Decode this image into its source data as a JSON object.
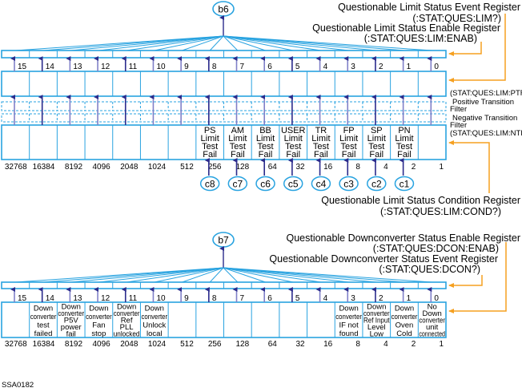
{
  "colors": {
    "register_line": "#29a3e0",
    "arrow_dark": "#2b2b8c",
    "arrow_light": "#8080c8",
    "pointer_orange": "#f5a020"
  },
  "top": {
    "summary_bit": "b6",
    "event_register": "Questionable Limit Status Event Register",
    "event_register_cmd": "(:STAT:QUES:LIM?)",
    "enable_register": "Questionable Limit Status Enable Register",
    "enable_register_cmd": "(:STAT:QUES:LIM:ENAB)",
    "ptr_cmd": "(STAT:QUES:LIM:PTR)",
    "ptr_label": [
      "Positive Transition",
      "Filter"
    ],
    "ntr_label": [
      "Negative Transition",
      "Filter"
    ],
    "ntr_cmd": "(STAT:QUES:LIM:NTR)",
    "condition_register": "Questionable Limit Status Condition Register",
    "condition_register_cmd": "(:STAT:QUES:LIM:COND?)",
    "bits": [
      "15",
      "14",
      "13",
      "12",
      "11",
      "10",
      "9",
      "8",
      "7",
      "6",
      "5",
      "4",
      "3",
      "2",
      "1",
      "0"
    ],
    "weights": [
      "32768",
      "16384",
      "8192",
      "4096",
      "2048",
      "1024",
      "512",
      "256",
      "128",
      "64",
      "32",
      "16",
      "8",
      "4",
      "2",
      "1"
    ],
    "conditions": [
      [],
      [],
      [],
      [],
      [],
      [],
      [],
      [
        "PS",
        "Limit",
        "Test",
        "Fail"
      ],
      [
        "AM",
        "Limit",
        "Test",
        "Fail"
      ],
      [
        "BB",
        "Limit",
        "Test",
        "Fail"
      ],
      [
        "USER",
        "Limit",
        "Test",
        "Fail"
      ],
      [
        "TR",
        "Limit",
        "Test",
        "Fail"
      ],
      [
        "FP",
        "Limit",
        "Test",
        "Fail"
      ],
      [
        "SP",
        "Limit",
        "Test",
        "Fail"
      ],
      [
        "PN",
        "Limit",
        "Test",
        "Fail"
      ],
      []
    ],
    "inputs": [
      "",
      "",
      "",
      "",
      "",
      "",
      "",
      "c8",
      "c7",
      "c6",
      "c5",
      "c4",
      "c3",
      "c2",
      "c1",
      ""
    ]
  },
  "bottom": {
    "summary_bit": "b7",
    "enable_register": "Questionable Downconverter Status Enable Register",
    "enable_register_cmd": "(:STAT:QUES:DCON:ENAB)",
    "event_register": "Questionable Downconverter Status Event Register",
    "event_register_cmd": "(:STAT:QUES:DCON?)",
    "bits": [
      "15",
      "14",
      "13",
      "12",
      "11",
      "10",
      "9",
      "8",
      "7",
      "6",
      "5",
      "4",
      "3",
      "2",
      "1",
      "0"
    ],
    "weights": [
      "32768",
      "16384",
      "8192",
      "4096",
      "2048",
      "1024",
      "512",
      "256",
      "128",
      "64",
      "32",
      "16",
      "8",
      "4",
      "2",
      "1"
    ],
    "conditions": [
      [],
      [
        "Down",
        "converter",
        "test",
        "failed"
      ],
      [
        "Down",
        "converter",
        "P5V",
        "power",
        "fail"
      ],
      [
        "Down",
        "converter",
        "Fan",
        "stop"
      ],
      [
        "Down",
        "converter",
        "Ref",
        "PLL",
        "unlocked"
      ],
      [
        "Down",
        "converter",
        "Unlock",
        "local"
      ],
      [],
      [],
      [],
      [],
      [],
      [],
      [
        "Down",
        "converter",
        "IF not",
        "found"
      ],
      [
        "Down",
        "converter",
        "Ref Input",
        "Level",
        "Low"
      ],
      [
        "Down",
        "converter",
        "Oven",
        "Cold"
      ],
      [
        "No",
        "Down",
        "converter",
        "unit",
        "connected"
      ]
    ]
  },
  "figure_id": "SSA0182"
}
